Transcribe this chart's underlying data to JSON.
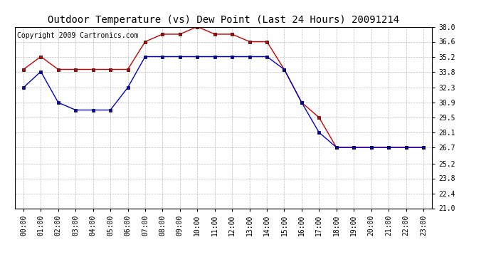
{
  "title": "Outdoor Temperature (vs) Dew Point (Last 24 Hours) 20091214",
  "copyright": "Copyright 2009 Cartronics.com",
  "x_labels": [
    "00:00",
    "01:00",
    "02:00",
    "03:00",
    "04:00",
    "05:00",
    "06:00",
    "07:00",
    "08:00",
    "09:00",
    "10:00",
    "11:00",
    "12:00",
    "13:00",
    "14:00",
    "15:00",
    "16:00",
    "17:00",
    "18:00",
    "19:00",
    "20:00",
    "21:00",
    "22:00",
    "23:00"
  ],
  "temp_data": [
    34.0,
    35.2,
    34.0,
    34.0,
    34.0,
    34.0,
    34.0,
    36.6,
    37.3,
    37.3,
    38.0,
    37.3,
    37.3,
    36.6,
    36.6,
    34.0,
    30.9,
    29.5,
    26.7,
    26.7,
    26.7,
    26.7,
    26.7,
    26.7
  ],
  "dew_data": [
    32.3,
    33.8,
    30.9,
    30.2,
    30.2,
    30.2,
    32.3,
    35.2,
    35.2,
    35.2,
    35.2,
    35.2,
    35.2,
    35.2,
    35.2,
    34.0,
    30.9,
    28.1,
    26.7,
    26.7,
    26.7,
    26.7,
    26.7,
    26.7
  ],
  "temp_color": "#cc0000",
  "dew_color": "#0000cc",
  "bg_color": "#ffffff",
  "plot_bg_color": "#ffffff",
  "grid_color": "#bbbbbb",
  "ylim_min": 21.0,
  "ylim_max": 38.0,
  "yticks": [
    21.0,
    22.4,
    23.8,
    25.2,
    26.7,
    28.1,
    29.5,
    30.9,
    32.3,
    33.8,
    35.2,
    36.6,
    38.0
  ],
  "title_fontsize": 10,
  "copyright_fontsize": 7,
  "tick_fontsize": 7,
  "marker_size": 3
}
